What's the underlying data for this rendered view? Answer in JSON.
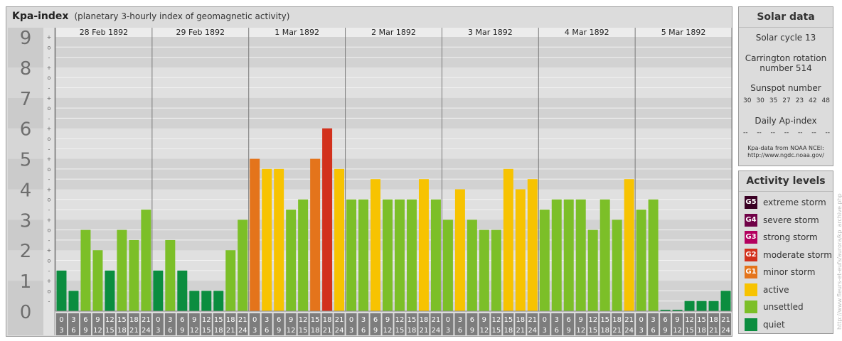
{
  "header": {
    "title": "Kpa-index",
    "subtitle": "(planetary 3-hourly index of geomagnetic activity)"
  },
  "chart_data": {
    "type": "bar",
    "title": "Kpa-index",
    "subtitle": "(planetary 3-hourly index of geomagnetic activity)",
    "ylim": [
      0,
      9
    ],
    "y_ticks": [
      "0",
      "1",
      "2",
      "3",
      "4",
      "5",
      "6",
      "7",
      "8",
      "9"
    ],
    "y_minor_marks": [
      "+",
      "o",
      "-"
    ],
    "days": [
      "28 Feb 1892",
      "29 Feb 1892",
      "1 Mar 1892",
      "2 Mar 1892",
      "3 Mar 1892",
      "4 Mar 1892",
      "5 Mar 1892"
    ],
    "intervals": [
      [
        "0",
        "3"
      ],
      [
        "3",
        "6"
      ],
      [
        "6",
        "9"
      ],
      [
        "9",
        "12"
      ],
      [
        "12",
        "15"
      ],
      [
        "15",
        "18"
      ],
      [
        "18",
        "21"
      ],
      [
        "21",
        "24"
      ]
    ],
    "values": [
      1.333,
      0.667,
      2.667,
      2.0,
      1.333,
      2.667,
      2.333,
      3.333,
      1.333,
      2.333,
      1.333,
      0.667,
      0.667,
      0.667,
      2.0,
      3.0,
      5.0,
      4.667,
      4.667,
      3.333,
      3.667,
      5.0,
      6.0,
      4.667,
      3.667,
      3.667,
      4.333,
      3.667,
      3.667,
      3.667,
      4.333,
      3.667,
      3.0,
      4.0,
      3.0,
      2.667,
      2.667,
      4.667,
      4.0,
      4.333,
      3.333,
      3.667,
      3.667,
      3.667,
      2.667,
      3.667,
      3.0,
      4.333,
      3.333,
      3.667,
      0.0,
      0.0,
      0.333,
      0.333,
      0.333,
      0.667
    ],
    "grid": true,
    "colors": {
      "quiet": "#0b8d3f",
      "unsettled": "#7cbf28",
      "active": "#f7c301",
      "G1": "#e4741b",
      "G2": "#d2311d",
      "G3": "#b3005f",
      "G4": "#700147",
      "G5": "#3a0024"
    }
  },
  "solar": {
    "title": "Solar data",
    "cycle": "Solar cycle 13",
    "carrington_line1": "Carrington rotation",
    "carrington_line2": "number 514",
    "sunspot_title": "Sunspot number",
    "sunspot_values": [
      "30",
      "30",
      "35",
      "27",
      "23",
      "42",
      "48"
    ],
    "ap_title": "Daily Ap-index",
    "ap_values": [
      "--",
      "--",
      "--",
      "--",
      "--",
      "--",
      "--"
    ],
    "credit_line1": "Kpa-data from NOAA NCEI:",
    "credit_line2": "http://www.ngdc.noaa.gov/"
  },
  "activity": {
    "title": "Activity levels",
    "levels": [
      {
        "code": "G5",
        "label": "extreme storm",
        "color": "#3a0024"
      },
      {
        "code": "G4",
        "label": "severe storm",
        "color": "#700147"
      },
      {
        "code": "G3",
        "label": "strong storm",
        "color": "#b3005f"
      },
      {
        "code": "G2",
        "label": "moderate storm",
        "color": "#d2311d"
      },
      {
        "code": "G1",
        "label": "minor storm",
        "color": "#e4741b"
      },
      {
        "code": "",
        "label": "active",
        "color": "#f7c301"
      },
      {
        "code": "",
        "label": "unsettled",
        "color": "#7cbf28"
      },
      {
        "code": "",
        "label": "quiet",
        "color": "#0b8d3f"
      }
    ]
  },
  "watermark": "http://www.fleurs-et-eufs/aurora/kp_archive.php"
}
